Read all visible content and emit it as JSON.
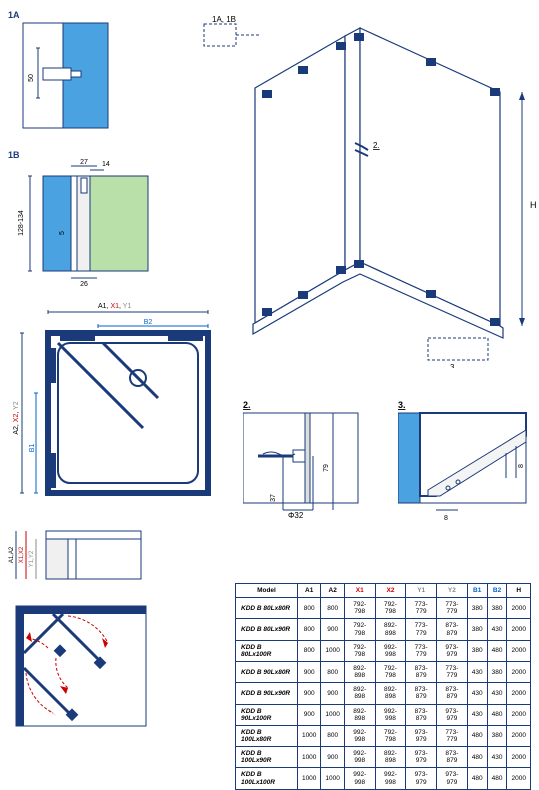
{
  "labels": {
    "detail1A": "1A",
    "detail1B": "1B",
    "detail2": "2.",
    "detail3": "3.",
    "d1A_50": "50",
    "d1B_27": "27",
    "d1B_14": "14",
    "d1B_5": "5",
    "d1B_26": "26",
    "d1B_128": "128-134",
    "A1X1Y1": "A1",
    "X1top": "X1",
    "Y1top": "Y1",
    "B2": "B2",
    "A2X2Y2": "A2",
    "X2left": "X2",
    "Y2left": "Y2",
    "B1": "B1",
    "small_A1A2": "A1,A2",
    "small_X1X2": "X1,X2",
    "small_Y1Y2": "Y1,Y2",
    "d2_37": "37",
    "d2_79": "79",
    "d2_phi": "Φ32",
    "d3_8a": "8",
    "d3_8b": "8",
    "d3d_h": "H",
    "d3d_3": "3.",
    "d3d_2": "2.",
    "d3d_1a1b": "1A, 1B"
  },
  "table": {
    "headers": [
      "Model",
      "A1",
      "A2",
      "X1",
      "X2",
      "Y1",
      "Y2",
      "B1",
      "B2",
      "H"
    ],
    "header_classes": [
      "",
      "",
      "",
      "hdr-x",
      "hdr-x",
      "hdr-y",
      "hdr-y",
      "hdr-b",
      "hdr-b",
      ""
    ],
    "rows": [
      [
        "KDD B 80Lx80R",
        "800",
        "800",
        "792-798",
        "792-798",
        "773-779",
        "773-779",
        "380",
        "380",
        "2000"
      ],
      [
        "KDD B 80Lx90R",
        "800",
        "900",
        "792-798",
        "892-898",
        "773-779",
        "873-879",
        "380",
        "430",
        "2000"
      ],
      [
        "KDD B 80Lx100R",
        "800",
        "1000",
        "792-798",
        "992-998",
        "773-779",
        "973-979",
        "380",
        "480",
        "2000"
      ],
      [
        "KDD B 90Lx80R",
        "900",
        "800",
        "892-898",
        "792-798",
        "873-879",
        "773-779",
        "430",
        "380",
        "2000"
      ],
      [
        "KDD B 90Lx90R",
        "900",
        "900",
        "892-898",
        "892-898",
        "873-879",
        "873-879",
        "430",
        "430",
        "2000"
      ],
      [
        "KDD B 90Lx100R",
        "900",
        "1000",
        "892-898",
        "992-998",
        "873-879",
        "973-979",
        "430",
        "480",
        "2000"
      ],
      [
        "KDD B 100Lx80R",
        "1000",
        "800",
        "992-998",
        "792-798",
        "973-979",
        "773-779",
        "480",
        "380",
        "2000"
      ],
      [
        "KDD B 100Lx90R",
        "1000",
        "900",
        "992-998",
        "892-898",
        "973-979",
        "873-879",
        "480",
        "430",
        "2000"
      ],
      [
        "KDD B 100Lx100R",
        "1000",
        "1000",
        "992-998",
        "992-998",
        "973-979",
        "973-979",
        "480",
        "480",
        "2000"
      ]
    ]
  },
  "colors": {
    "stroke": "#1a3a7a",
    "glass_blue": "#4aa3e0",
    "glass_green": "#b8e0a8",
    "red": "#c00"
  }
}
